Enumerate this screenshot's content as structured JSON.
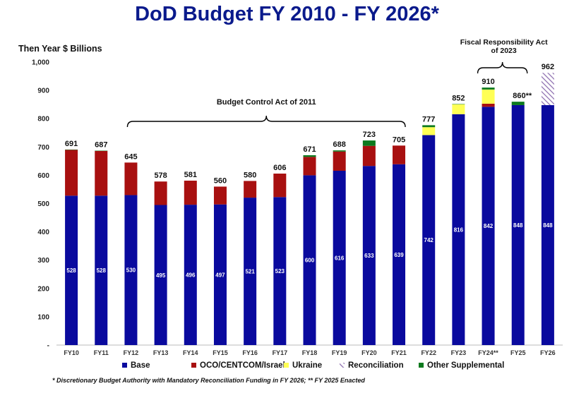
{
  "title": "DoD Budget FY 2010 - FY 2026*",
  "footnote": "* Discretionary Budget Authority with Mandatory Reconciliation Funding in FY 2026; ** FY 2025 Enacted",
  "chart_data": {
    "type": "bar",
    "stacked": true,
    "title": "DoD Budget FY 2010 - FY 2026*",
    "ylabel": "Then Year $ Billions",
    "xlabel": "",
    "ylim": [
      0,
      1000
    ],
    "yticks": [
      0,
      100,
      200,
      300,
      400,
      500,
      600,
      700,
      800,
      900,
      1000
    ],
    "ytick_labels": [
      "-",
      "100",
      "200",
      "300",
      "400",
      "500",
      "600",
      "700",
      "800",
      "900",
      "1,000"
    ],
    "categories": [
      "FY10",
      "FY11",
      "FY12",
      "FY13",
      "FY14",
      "FY15",
      "FY16",
      "FY17",
      "FY18",
      "FY19",
      "FY20",
      "FY21",
      "FY22",
      "FY23",
      "FY24**",
      "FY25",
      "FY26"
    ],
    "series": [
      {
        "name": "Base",
        "color": "#0a0a9e",
        "values": [
          528,
          528,
          530,
          495,
          496,
          497,
          521,
          523,
          600,
          616,
          633,
          639,
          742,
          816,
          842,
          848,
          848
        ]
      },
      {
        "name": "OCO/CENTCOM/Israel",
        "color": "#a81010",
        "values": [
          162,
          158,
          115,
          83,
          85,
          63,
          59,
          83,
          65,
          68,
          71,
          66,
          0,
          0,
          11,
          0,
          0
        ]
      },
      {
        "name": "Ukraine",
        "color": "#ffff55",
        "values": [
          0,
          0,
          0,
          0,
          0,
          0,
          0,
          0,
          0,
          0,
          0,
          0,
          28,
          35,
          50,
          0,
          0
        ]
      },
      {
        "name": "Reconciliation",
        "color": "#8e6fb0",
        "pattern": "hatch",
        "values": [
          0,
          0,
          0,
          0,
          0,
          0,
          0,
          0,
          0,
          0,
          0,
          0,
          0,
          0,
          0,
          0,
          114
        ]
      },
      {
        "name": "Other Supplemental",
        "color": "#0d7a1e",
        "values": [
          1,
          1,
          0,
          0,
          0,
          0,
          0,
          0,
          6,
          4,
          19,
          0,
          7,
          1,
          7,
          12,
          0
        ]
      }
    ],
    "totals": [
      "691",
      "687",
      "645",
      "578",
      "581",
      "560",
      "580",
      "606",
      "671",
      "688",
      "723",
      "705",
      "777",
      "852",
      "910",
      "860**",
      "962"
    ],
    "annotations": [
      {
        "text": "Budget Control Act of 2011",
        "from": "FY12",
        "to": "FY21"
      },
      {
        "text": "Fiscal Responsibility Act of 2023",
        "lines": [
          "Fiscal Responsibility Act",
          "of 2023"
        ],
        "from": "FY24**",
        "to": "FY25"
      }
    ],
    "grid": false,
    "legend_position": "bottom"
  }
}
